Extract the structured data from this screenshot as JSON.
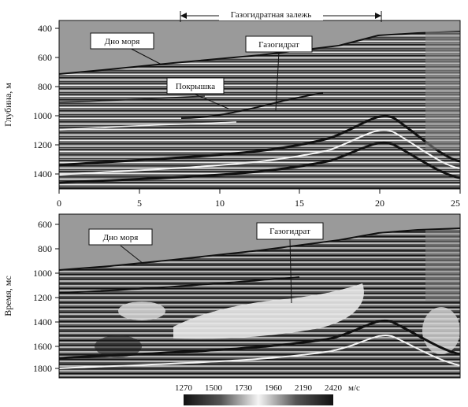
{
  "top_panel": {
    "ylabel": "Глубина, м",
    "yticks": [
      "400",
      "600",
      "800",
      "1000",
      "1200",
      "1400"
    ],
    "bracket_label": "Газогидратная залежь",
    "labels": {
      "seafloor": "Дно моря",
      "hydrate": "Газогидрат",
      "cap": "Покрышка"
    }
  },
  "distance_axis": {
    "ticks": [
      "0",
      "5",
      "10",
      "15",
      "20",
      "25"
    ]
  },
  "bottom_panel": {
    "ylabel": "Время, мс",
    "yticks": [
      "600",
      "800",
      "1000",
      "1200",
      "1400",
      "1600",
      "1800"
    ],
    "labels": {
      "seafloor": "Дно моря",
      "hydrate": "Газогидрат"
    }
  },
  "colorbar": {
    "ticks": [
      "1270",
      "1500",
      "1730",
      "1960",
      "2190",
      "2420"
    ],
    "unit": "м/с"
  },
  "colors": {
    "water": "#9a9a9a",
    "ink": "#111111",
    "paper": "#ffffff"
  }
}
